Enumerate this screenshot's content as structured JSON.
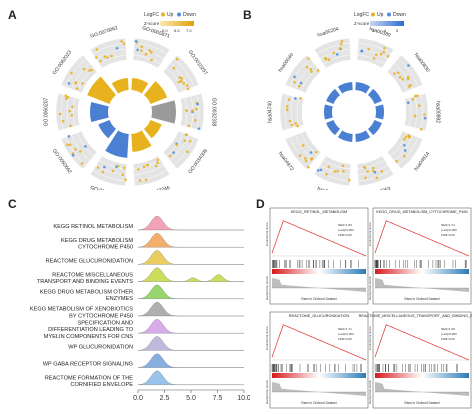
{
  "panels": {
    "a": {
      "letter": "A",
      "legend": {
        "logfc_label": "LogFC",
        "up": "Up",
        "down": "Down",
        "z_label": "Z-score",
        "z_ticks": [
          "6.0",
          "6.5",
          "7.0"
        ]
      },
      "terms": [
        "GO:0005871",
        "GO:0010257",
        "GO:0032338",
        "GO:0034308",
        "GO:0042246",
        "GO:0047006",
        "GO:0050662",
        "GO:0060207",
        "GO:0062023",
        "GO:0070062"
      ],
      "inner_bar_colors": [
        "#e8b21e",
        "#e8b21e",
        "#9a9a9a",
        "#e8b21e",
        "#e8b21e",
        "#4a7fd1",
        "#4a7fd1",
        "#4a7fd1",
        "#e8b21e",
        "#e8b21e"
      ]
    },
    "b": {
      "letter": "B",
      "legend": {
        "logfc_label": "LogFC",
        "up": "Up",
        "down": "Down",
        "z_label": "Z-score",
        "z_ticks": [
          "3",
          "4",
          "5"
        ]
      },
      "terms": [
        "hsa00380",
        "hsa00830",
        "hsa00982",
        "hsa04614",
        "hsa00053",
        "hsa00860",
        "hsa04972",
        "hsa04740",
        "hsa00040",
        "hsa05204"
      ]
    },
    "c": {
      "letter": "C",
      "x_ticks": [
        "0.0",
        "2.5",
        "5.0",
        "7.5",
        "10.0"
      ],
      "rows": [
        {
          "label": [
            "KEGG RETINOL METABOLISM"
          ],
          "color": "#f29ab1"
        },
        {
          "label": [
            "KEGG DRUG METABOLISM",
            "CYTOCHROME P450"
          ],
          "color": "#f2a65b"
        },
        {
          "label": [
            "REACTOME GLUCURONIDATION"
          ],
          "color": "#e8c84f"
        },
        {
          "label": [
            "REACTOME MISCELLANEOUS",
            "TRANSPORT AND BINDING EVENTS"
          ],
          "color": "#c7d94a"
        },
        {
          "label": [
            "KEGG DRUG METABOLISM OTHER",
            "ENZYMES"
          ],
          "color": "#8fd15e"
        },
        {
          "label": [
            "KEGG METABOLISM OF XENOBIOTICS",
            "BY CYTOCHROME P450"
          ],
          "color": "#a7a7a7"
        },
        {
          "label": [
            "SPECIFICATION AND",
            "DIFFERENTIATION LEADING TO",
            "MYELIN COMPONENTS FOR CNS"
          ],
          "color": "#d4a4e8"
        },
        {
          "label": [
            "WP GLUCURONIDATION"
          ],
          "color": "#b9b3d8"
        },
        {
          "label": [
            "WP GABA RECEPTOR SIGNALING"
          ],
          "color": "#7aa7de"
        },
        {
          "label": [
            "REACTOME FORMATION OF THE",
            "CORNIFIED ENVELOPE"
          ],
          "color": "#8fbde8"
        }
      ]
    },
    "d": {
      "letter": "D",
      "plots": [
        {
          "title": "KEGG_RETINOL_METABOLISM",
          "stats": [
            "NES=1.83",
            "p.adj=0.000",
            "FDR=0.00"
          ],
          "y_label": "Enrichment Score",
          "y_label2": "Ranked list metric",
          "x_label": "Rank in Ordered Dataset"
        },
        {
          "title": "KEGG_DRUG_METABOLISM_CYTOCHROME_P450",
          "stats": [
            "NES=1.74",
            "p.adj=0.000",
            "FDR=0.00"
          ],
          "y_label": "Enrichment Score",
          "y_label2": "Ranked list metric",
          "x_label": "Rank in Ordered Dataset"
        },
        {
          "title": "REACTOME_GLUCURONIDATION",
          "stats": [
            "NES=1.71",
            "p.adj=0.000",
            "FDR=0.00"
          ],
          "y_label": "Enrichment Score",
          "y_label2": "Ranked list metric",
          "x_label": "Rank in Ordered Dataset"
        },
        {
          "title": "REACTOME_MISCELLANEOUS_TRANSPORT_AND_BINDING_EVENTS",
          "stats": [
            "NES=1.69",
            "p.adj=0.000",
            "FDR=0.00"
          ],
          "y_label": "Enrichment Score",
          "y_label2": "Ranked list metric",
          "x_label": "Rank in Ordered Dataset"
        }
      ]
    }
  }
}
